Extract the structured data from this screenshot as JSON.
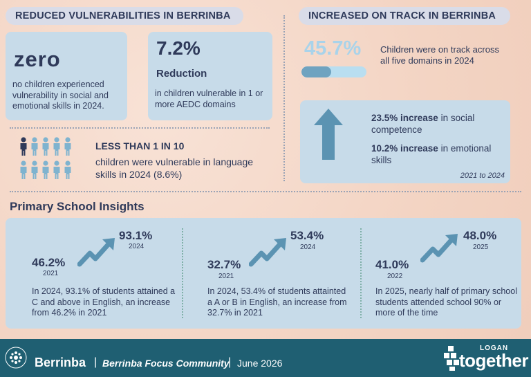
{
  "left_header": "REDUCED VULNERABILITIES IN BERRINBA",
  "right_header": "INCREASED ON TRACK IN BERRINBA",
  "zero_card": {
    "value": "zero",
    "text": "no children experienced vulnerability in social and emotional  skills in 2024."
  },
  "reduction_card": {
    "value": "7.2%",
    "label": "Reduction",
    "text": "in children vulnerable in 1 or more AEDC domains"
  },
  "language": {
    "headline": "LESS THAN 1 IN 10",
    "text": "children were vulnerable in language skills in 2024 (8.6%)"
  },
  "on_track": {
    "value": "45.7%",
    "progress": 0.457,
    "text": "Children were on track across all five domains in 2024"
  },
  "increase_card": {
    "line1_bold": "23.5% increase",
    "line1_rest": " in social competence",
    "line2_bold": "10.2% increase",
    "line2_rest": " in emotional skills",
    "period": "2021 to 2024"
  },
  "primary_title": "Primary School Insights",
  "insights": [
    {
      "from_value": "46.2%",
      "from_year": "2021",
      "to_value": "93.1%",
      "to_year": "2024",
      "text": "In 2024, 93.1% of students attained a C and above in English, an increase from 46.2% in 2021"
    },
    {
      "from_value": "32.7%",
      "from_year": "2021",
      "to_value": "53.4%",
      "to_year": "2024",
      "text": "In 2024, 53.4% of students attainted a A or B in English, an increase from 32.7% in 2021"
    },
    {
      "from_value": "41.0%",
      "from_year": "2022",
      "to_value": "48.0%",
      "to_year": "2025",
      "text": "In 2025, nearly half of primary school students attended school 90% or more of the time"
    }
  ],
  "footer": {
    "brand": "Berrinba",
    "separator": "|",
    "community": "Berrinba Focus Community",
    "date": "June 2026",
    "logo_small": "LOGAN",
    "logo_big": "together",
    "seal_text": "Berrinba"
  },
  "colors": {
    "navy": "#2f3a5a",
    "teal": "#4f86a6",
    "card": "#c7dbe9",
    "footer": "#1f5f72"
  }
}
